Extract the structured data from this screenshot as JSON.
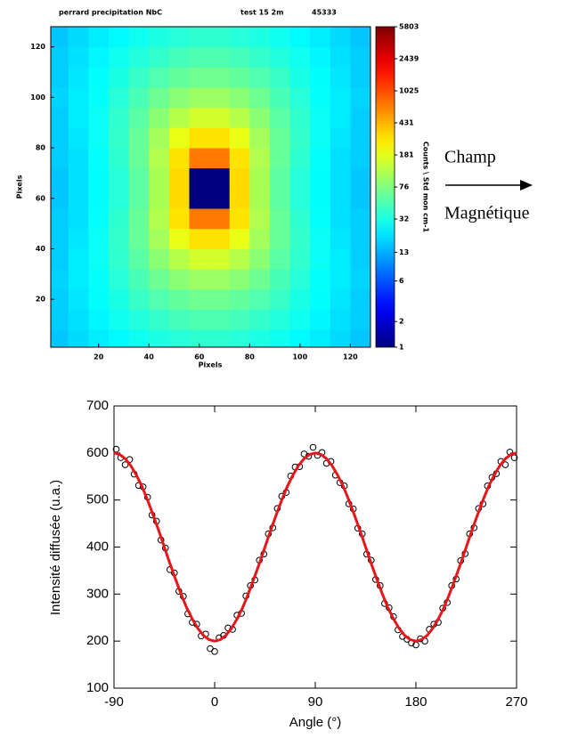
{
  "chart_data": [
    {
      "type": "heatmap",
      "header_texts": [
        "perrard precipitation NbC",
        "test 15 2m",
        "45333"
      ],
      "xlabel": "Pixels",
      "ylabel": "Pixels",
      "colorbar_label": "Counts \\ Std mon cm-1",
      "annotations": [
        "Champ",
        "Magnétique"
      ],
      "xlim": [
        1,
        128
      ],
      "ylim": [
        1,
        128
      ],
      "xticks": [
        20,
        40,
        60,
        80,
        100,
        120
      ],
      "yticks": [
        20,
        40,
        60,
        80,
        100,
        120
      ],
      "colormap": "jet",
      "log_scale": true,
      "zlim": [
        1,
        5803
      ],
      "zticks": [
        5803,
        2439,
        1025,
        431,
        181,
        76,
        32,
        13,
        6,
        2,
        1
      ],
      "x": [
        4,
        12,
        20,
        28,
        36,
        44,
        52,
        60,
        68,
        76,
        84,
        92,
        100,
        108,
        116,
        124
      ],
      "y": [
        4,
        12,
        20,
        28,
        36,
        44,
        52,
        60,
        68,
        76,
        84,
        92,
        100,
        108,
        116,
        124
      ],
      "z": [
        [
          16,
          19,
          22,
          25,
          29,
          33,
          36,
          38,
          38,
          36,
          33,
          29,
          25,
          22,
          19,
          16
        ],
        [
          17,
          20,
          24,
          29,
          34,
          40,
          46,
          49,
          49,
          46,
          40,
          34,
          29,
          24,
          20,
          17
        ],
        [
          17,
          21,
          26,
          32,
          41,
          51,
          60,
          66,
          66,
          60,
          51,
          41,
          32,
          26,
          21,
          17
        ],
        [
          18,
          22,
          27,
          36,
          48,
          65,
          83,
          96,
          96,
          83,
          65,
          48,
          36,
          27,
          22,
          18
        ],
        [
          17,
          22,
          28,
          39,
          56,
          84,
          121,
          153,
          153,
          121,
          84,
          56,
          39,
          28,
          22,
          17
        ],
        [
          17,
          21,
          28,
          40,
          62,
          105,
          187,
          286,
          286,
          187,
          105,
          62,
          40,
          28,
          21,
          17
        ],
        [
          17,
          20,
          27,
          38,
          62,
          117,
          283,
          705,
          705,
          283,
          117,
          62,
          38,
          27,
          20,
          17
        ],
        [
          16,
          20,
          26,
          36,
          57,
          109,
          305,
          1,
          1,
          305,
          109,
          57,
          36,
          26,
          20,
          16
        ],
        [
          16,
          20,
          26,
          36,
          57,
          109,
          305,
          1,
          1,
          305,
          109,
          57,
          36,
          26,
          20,
          16
        ],
        [
          17,
          20,
          27,
          38,
          62,
          117,
          283,
          705,
          705,
          283,
          117,
          62,
          38,
          27,
          20,
          17
        ],
        [
          17,
          21,
          28,
          40,
          62,
          105,
          187,
          286,
          286,
          187,
          105,
          62,
          40,
          28,
          21,
          17
        ],
        [
          17,
          22,
          28,
          39,
          56,
          84,
          121,
          153,
          153,
          121,
          84,
          56,
          39,
          28,
          22,
          17
        ],
        [
          18,
          22,
          27,
          36,
          48,
          65,
          83,
          96,
          96,
          83,
          65,
          48,
          36,
          27,
          22,
          18
        ],
        [
          17,
          21,
          26,
          32,
          41,
          51,
          60,
          66,
          66,
          60,
          51,
          41,
          32,
          26,
          21,
          17
        ],
        [
          17,
          20,
          24,
          29,
          34,
          40,
          46,
          49,
          49,
          46,
          40,
          34,
          29,
          24,
          20,
          17
        ],
        [
          16,
          19,
          22,
          25,
          29,
          33,
          36,
          38,
          38,
          36,
          33,
          29,
          25,
          22,
          19,
          16
        ]
      ]
    },
    {
      "type": "scatter",
      "xlabel": "Angle (°)",
      "ylabel": "Intensité diffusée (u.a.)",
      "xlim": [
        -90,
        270
      ],
      "ylim": [
        100,
        700
      ],
      "xticks": [
        -90,
        0,
        90,
        180,
        270
      ],
      "yticks": [
        100,
        200,
        300,
        400,
        500,
        600,
        700
      ],
      "series": [
        {
          "type": "scatter",
          "color": "#000000",
          "x": [
            -88,
            -84,
            -80,
            -76,
            -72,
            -68,
            -64,
            -60,
            -56,
            -52,
            -48,
            -44,
            -40,
            -36,
            -32,
            -28,
            -24,
            -20,
            -16,
            -12,
            -8,
            -4,
            0,
            4,
            8,
            12,
            16,
            20,
            24,
            28,
            32,
            36,
            40,
            44,
            48,
            52,
            56,
            60,
            64,
            68,
            72,
            76,
            80,
            84,
            88,
            92,
            96,
            100,
            104,
            108,
            112,
            116,
            120,
            124,
            128,
            132,
            136,
            140,
            144,
            148,
            152,
            156,
            160,
            164,
            168,
            172,
            176,
            180,
            184,
            188,
            192,
            196,
            200,
            204,
            208,
            212,
            216,
            220,
            224,
            228,
            232,
            236,
            240,
            244,
            248,
            252,
            256,
            260,
            264,
            268
          ],
          "values": [
            608,
            590,
            575,
            586,
            555,
            531,
            528,
            506,
            468,
            455,
            415,
            398,
            352,
            345,
            306,
            295,
            258,
            240,
            236,
            211,
            215,
            184,
            178,
            207,
            212,
            228,
            225,
            255,
            259,
            296,
            318,
            330,
            372,
            385,
            428,
            441,
            482,
            508,
            516,
            551,
            570,
            571,
            598,
            593,
            612,
            595,
            601,
            578,
            582,
            553,
            537,
            530,
            492,
            481,
            440,
            428,
            385,
            372,
            331,
            318,
            280,
            271,
            252,
            224,
            210,
            204,
            196,
            192,
            205,
            200,
            225,
            236,
            240,
            270,
            282,
            318,
            332,
            371,
            386,
            428,
            441,
            482,
            492,
            530,
            548,
            556,
            582,
            575,
            602,
            590
          ]
        },
        {
          "type": "line",
          "color": "#e8161b",
          "x": [
            -90,
            -85,
            -80,
            -75,
            -70,
            -65,
            -60,
            -55,
            -50,
            -45,
            -40,
            -35,
            -30,
            -25,
            -20,
            -15,
            -10,
            -5,
            0,
            5,
            10,
            15,
            20,
            25,
            30,
            35,
            40,
            45,
            50,
            55,
            60,
            65,
            70,
            75,
            80,
            85,
            90,
            95,
            100,
            105,
            110,
            115,
            120,
            125,
            130,
            135,
            140,
            145,
            150,
            155,
            160,
            165,
            170,
            175,
            180,
            185,
            190,
            195,
            200,
            205,
            210,
            215,
            220,
            225,
            230,
            235,
            240,
            245,
            250,
            255,
            260,
            265,
            270
          ],
          "values": [
            600,
            597,
            588,
            573,
            553,
            529,
            500,
            468,
            435,
            400,
            365,
            332,
            300,
            271,
            247,
            227,
            212,
            203,
            200,
            203,
            212,
            227,
            247,
            271,
            300,
            332,
            365,
            400,
            435,
            468,
            500,
            529,
            553,
            573,
            588,
            597,
            600,
            597,
            588,
            573,
            553,
            529,
            500,
            468,
            435,
            400,
            365,
            332,
            300,
            271,
            247,
            227,
            212,
            203,
            200,
            203,
            212,
            227,
            247,
            271,
            300,
            332,
            365,
            400,
            435,
            468,
            500,
            529,
            553,
            573,
            588,
            597,
            600
          ]
        }
      ]
    }
  ]
}
